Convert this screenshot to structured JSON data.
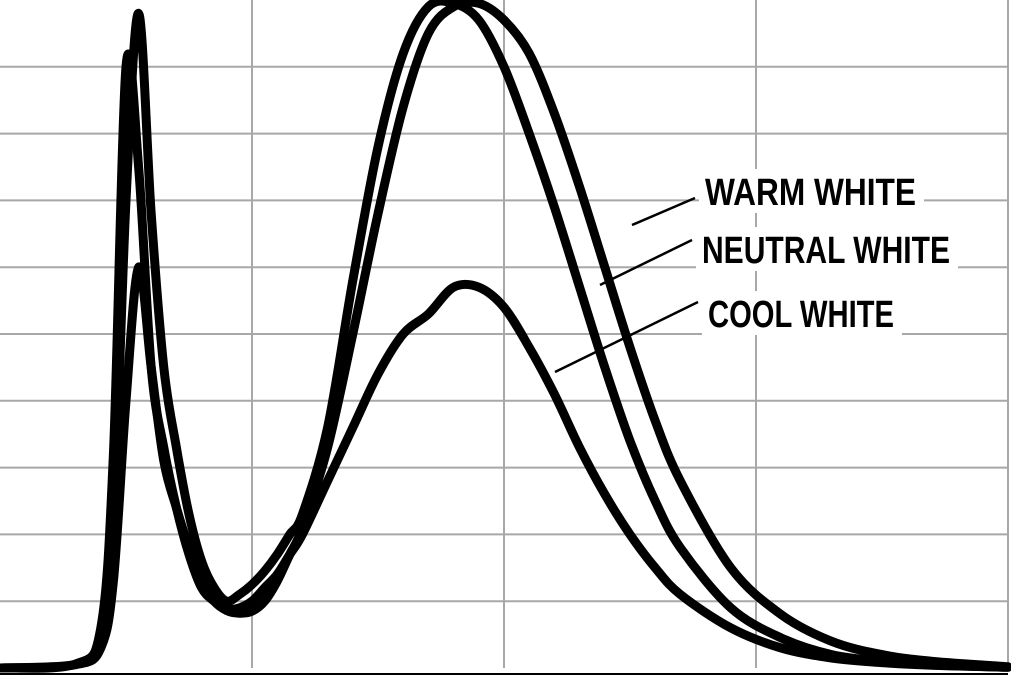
{
  "chart_data": {
    "type": "line",
    "title": "",
    "xlabel": "",
    "ylabel": "",
    "xlim": [
      350,
      750
    ],
    "ylim": [
      0,
      1.0
    ],
    "grid": true,
    "x_gridlines": [
      450,
      550,
      650
    ],
    "y_gridlines": [
      0.1,
      0.2,
      0.3,
      0.4,
      0.5,
      0.6,
      0.7,
      0.8,
      0.9
    ],
    "legend": "inline-right",
    "series": [
      {
        "name": "WARM WHITE",
        "x": [
          350,
          380,
          390,
          395,
          400,
          405,
          410,
          415,
          420,
          425,
          430,
          435,
          440,
          445,
          450,
          455,
          460,
          465,
          470,
          480,
          490,
          500,
          510,
          520,
          530,
          540,
          550,
          560,
          570,
          580,
          590,
          600,
          610,
          620,
          640,
          660,
          680,
          700,
          720,
          750
        ],
        "values": [
          0.0,
          0.005,
          0.03,
          0.13,
          0.4,
          0.6,
          0.45,
          0.31,
          0.24,
          0.18,
          0.13,
          0.1,
          0.086,
          0.082,
          0.085,
          0.1,
          0.13,
          0.17,
          0.21,
          0.33,
          0.5,
          0.68,
          0.84,
          0.95,
          0.99,
          0.995,
          0.97,
          0.92,
          0.83,
          0.72,
          0.6,
          0.48,
          0.37,
          0.28,
          0.15,
          0.08,
          0.04,
          0.02,
          0.01,
          0.002
        ]
      },
      {
        "name": "NEUTRAL WHITE",
        "x": [
          350,
          380,
          390,
          395,
          400,
          405,
          410,
          415,
          420,
          425,
          430,
          435,
          440,
          445,
          450,
          455,
          460,
          465,
          470,
          480,
          490,
          500,
          510,
          520,
          530,
          540,
          550,
          560,
          570,
          580,
          590,
          600,
          610,
          620,
          640,
          660,
          680,
          700,
          720,
          750
        ],
        "values": [
          0.0,
          0.006,
          0.05,
          0.22,
          0.7,
          0.98,
          0.68,
          0.45,
          0.33,
          0.23,
          0.16,
          0.12,
          0.1,
          0.11,
          0.125,
          0.145,
          0.17,
          0.2,
          0.23,
          0.36,
          0.58,
          0.78,
          0.92,
          0.99,
          0.995,
          0.97,
          0.9,
          0.8,
          0.69,
          0.57,
          0.45,
          0.34,
          0.25,
          0.18,
          0.09,
          0.045,
          0.02,
          0.01,
          0.005,
          0.001
        ]
      },
      {
        "name": "COOL WHITE",
        "x": [
          350,
          380,
          390,
          395,
          400,
          405,
          410,
          415,
          420,
          425,
          430,
          435,
          440,
          445,
          450,
          455,
          460,
          465,
          470,
          480,
          490,
          500,
          510,
          520,
          530,
          540,
          550,
          560,
          570,
          580,
          590,
          600,
          610,
          620,
          640,
          660,
          680,
          700,
          720,
          750
        ],
        "values": [
          0.0,
          0.006,
          0.06,
          0.32,
          0.9,
          0.75,
          0.45,
          0.33,
          0.24,
          0.17,
          0.12,
          0.1,
          0.088,
          0.09,
          0.1,
          0.12,
          0.14,
          0.17,
          0.2,
          0.28,
          0.36,
          0.44,
          0.5,
          0.53,
          0.57,
          0.57,
          0.54,
          0.48,
          0.41,
          0.33,
          0.26,
          0.2,
          0.15,
          0.11,
          0.06,
          0.03,
          0.015,
          0.008,
          0.004,
          0.001
        ]
      }
    ]
  }
}
